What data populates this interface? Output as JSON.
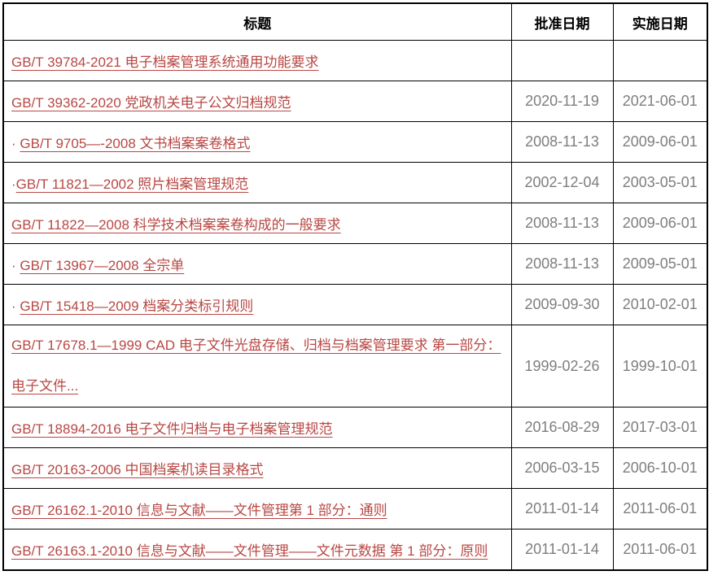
{
  "colors": {
    "table_border": "#000000",
    "header_text": "#000000",
    "link_red": "#b84743",
    "date_gray": "#7e7e7e",
    "background": "#ffffff"
  },
  "table": {
    "headers": {
      "title": "标题",
      "approved": "批准日期",
      "implemented": "实施日期"
    },
    "rows": [
      {
        "bullet": "",
        "title": "GB/T 39784-2021 电子档案管理系统通用功能要求",
        "approved": "",
        "implemented": "",
        "tall": false
      },
      {
        "bullet": "",
        "title": "GB/T 39362-2020 党政机关电子公文归档规范",
        "approved": "2020-11-19",
        "implemented": "2021-06-01",
        "tall": false
      },
      {
        "bullet": "· ",
        "title": "GB/T 9705—-2008 文书档案案卷格式",
        "approved": "2008-11-13",
        "implemented": "2009-06-01",
        "tall": false
      },
      {
        "bullet": "·",
        "title": "GB/T 11821—2002 照片档案管理规范",
        "approved": "2002-12-04",
        "implemented": "2003-05-01",
        "tall": false
      },
      {
        "bullet": "",
        "title": "GB/T 11822—2008 科学技术档案案卷构成的一般要求",
        "approved": "2008-11-13",
        "implemented": "2009-06-01",
        "tall": false
      },
      {
        "bullet": "· ",
        "title": "GB/T 13967—2008 全宗单",
        "approved": "2008-11-13",
        "implemented": "2009-05-01",
        "tall": false
      },
      {
        "bullet": "· ",
        "title": "GB/T 15418—2009 档案分类标引规则",
        "approved": "2009-09-30",
        "implemented": "2010-02-01",
        "tall": false
      },
      {
        "bullet": "",
        "title": "GB/T 17678.1—1999 CAD 电子文件光盘存储、归档与档案管理要求 第一部分：\n电子文件...",
        "approved": "1999-02-26",
        "implemented": "1999-10-01",
        "tall": true
      },
      {
        "bullet": "",
        "title": "GB/T 18894-2016 电子文件归档与电子档案管理规范",
        "approved": "2016-08-29",
        "implemented": "2017-03-01",
        "tall": false
      },
      {
        "bullet": "",
        "title": "GB/T 20163-2006 中国档案机读目录格式",
        "approved": "2006-03-15",
        "implemented": "2006-10-01",
        "tall": false
      },
      {
        "bullet": "",
        "title": "GB/T 26162.1-2010 信息与文献——文件管理第 1 部分：通则",
        "approved": "2011-01-14",
        "implemented": "2011-06-01",
        "tall": false
      },
      {
        "bullet": "",
        "title": "GB/T 26163.1-2010 信息与文献——文件管理——文件元数据 第 1 部分：原则",
        "approved": "2011-01-14",
        "implemented": "2011-06-01",
        "tall": false
      }
    ]
  }
}
